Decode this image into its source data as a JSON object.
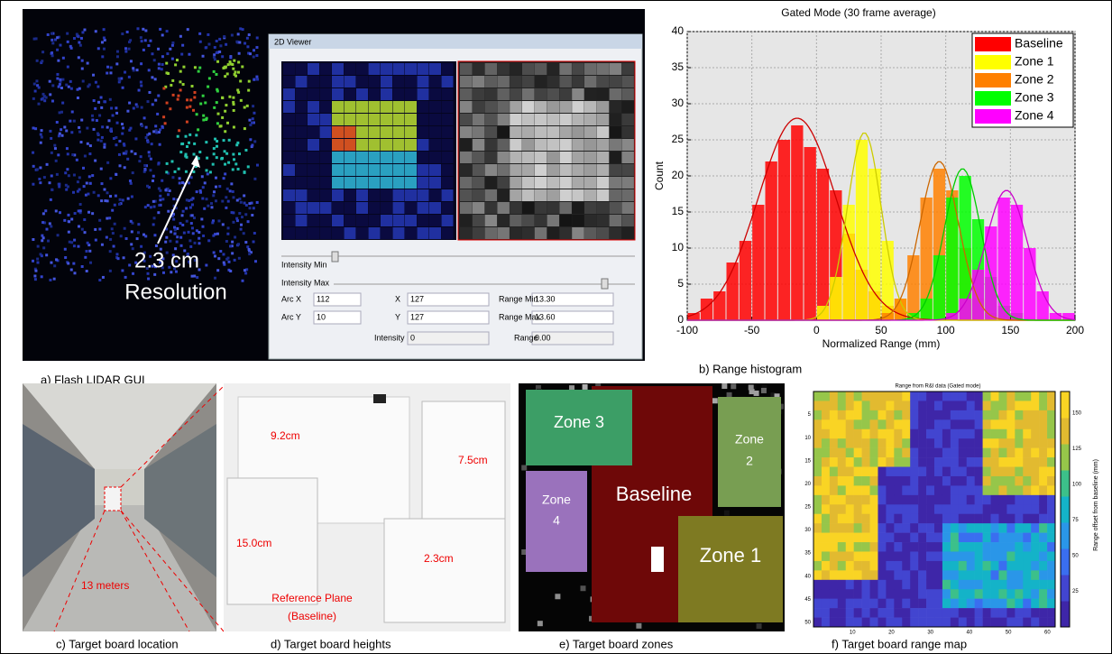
{
  "gui": {
    "window_title": "2D Viewer",
    "intensity_min": "Intensity Min",
    "intensity_max": "Intensity Max",
    "fields": [
      {
        "label": "Arc X",
        "value": "112"
      },
      {
        "label": "Arc Y",
        "value": "10"
      },
      {
        "label": "X",
        "value": "127"
      },
      {
        "label": "Y",
        "value": "127"
      },
      {
        "label": "Intensity",
        "value": "0"
      },
      {
        "label": "Range Min",
        "value": "13.30"
      },
      {
        "label": "Range Max",
        "value": "13.60"
      },
      {
        "label": "Range",
        "value": "0.00"
      }
    ],
    "annotation": [
      "2.3 cm",
      "Resolution"
    ]
  },
  "chart_data": {
    "type": "histogram",
    "title": "Gated Mode (30 frame average)",
    "x_label": "Normalized Range (mm)",
    "y_label": "Count",
    "xlim": [
      -100,
      200
    ],
    "xticks": [
      -100,
      -50,
      0,
      50,
      100,
      150,
      200
    ],
    "ylim": [
      0,
      40
    ],
    "yticks": [
      0,
      5,
      10,
      15,
      20,
      25,
      30,
      35,
      40
    ],
    "grid": true,
    "legend": "top-right",
    "series": [
      {
        "name": "Baseline",
        "color": "#ff0000",
        "bins": [
          -100,
          -90,
          -80,
          -70,
          -60,
          -50,
          -40,
          -30,
          -20,
          -10,
          0,
          10,
          20,
          30,
          40,
          50,
          60,
          70
        ],
        "values": [
          1,
          3,
          4,
          8,
          11,
          16,
          22,
          25,
          27,
          24,
          21,
          18,
          12,
          7,
          4,
          2,
          1
        ],
        "fit": {
          "mean": -15,
          "sd": 30,
          "peak": 28
        }
      },
      {
        "name": "Zone 1",
        "color": "#ffff00",
        "bins": [
          0,
          10,
          20,
          30,
          40,
          50,
          60,
          70,
          80
        ],
        "values": [
          2,
          6,
          16,
          25,
          21,
          11,
          3,
          1
        ],
        "fit": {
          "mean": 37,
          "sd": 13,
          "peak": 26
        }
      },
      {
        "name": "Zone 2",
        "color": "#ff8000",
        "bins": [
          50,
          60,
          70,
          80,
          90,
          100,
          110,
          120,
          130,
          140
        ],
        "values": [
          1,
          3,
          9,
          17,
          21,
          18,
          10,
          3,
          1
        ],
        "fit": {
          "mean": 95,
          "sd": 15,
          "peak": 22
        }
      },
      {
        "name": "Zone 3",
        "color": "#00ff00",
        "bins": [
          70,
          80,
          90,
          100,
          110,
          120,
          130,
          140,
          150,
          160
        ],
        "values": [
          1,
          3,
          9,
          17,
          20,
          14,
          6,
          2,
          1
        ],
        "fit": {
          "mean": 113,
          "sd": 14,
          "peak": 21
        }
      },
      {
        "name": "Zone 4",
        "color": "#ff00ff",
        "bins": [
          100,
          110,
          120,
          130,
          140,
          150,
          160,
          170,
          180,
          190,
          200
        ],
        "values": [
          1,
          3,
          7,
          13,
          17,
          16,
          10,
          4,
          1,
          1
        ],
        "fit": {
          "mean": 147,
          "sd": 16,
          "peak": 18
        }
      }
    ]
  },
  "location": {
    "distance": "13 meters"
  },
  "heights": {
    "labels": [
      "9.2cm",
      "7.5cm",
      "15.0cm",
      "2.3cm"
    ],
    "reference": [
      "Reference Plane",
      "(Baseline)"
    ]
  },
  "zones": {
    "zone3": "Zone 3",
    "zone2": [
      "Zone",
      "2"
    ],
    "zone4": [
      "Zone",
      "4"
    ],
    "baseline": "Baseline",
    "zone1": "Zone 1"
  },
  "range_map": {
    "title": "Range from R&I data (Gated mode)",
    "colorbar_label": "Range offset from baseline (mm)",
    "yticks": [
      5,
      10,
      15,
      20,
      25,
      30,
      35,
      40,
      45,
      50
    ],
    "xticks": [
      10,
      20,
      30,
      40,
      50,
      60
    ],
    "colorbar_ticks": [
      25,
      50,
      75,
      100,
      125,
      150
    ]
  },
  "captions": [
    "a) Flash LIDAR GUI",
    "b) Range histogram",
    "c) Target board location",
    "d) Target board heights",
    "e) Target board zones",
    "f) Target board range map"
  ]
}
